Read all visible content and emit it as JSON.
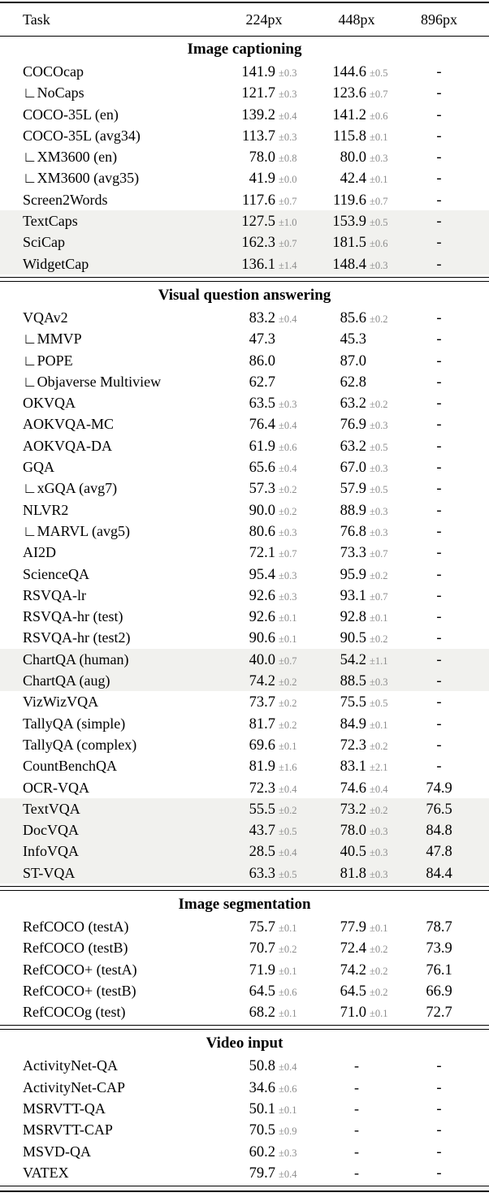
{
  "colors": {
    "text": "#000000",
    "error_text": "#8c8c8c",
    "row_shade": "#f1f1ee",
    "rule": "#000000",
    "background": "#ffffff"
  },
  "table": {
    "columns": [
      "Task",
      "224px",
      "448px",
      "896px"
    ],
    "sections": [
      {
        "title": "Image captioning",
        "rows": [
          {
            "task": "COCOcap",
            "shaded": false,
            "v224": "141.9",
            "e224": "±0.3",
            "v448": "144.6",
            "e448": "±0.5",
            "v896": "-"
          },
          {
            "task": "∟NoCaps",
            "shaded": false,
            "v224": "121.7",
            "e224": "±0.3",
            "v448": "123.6",
            "e448": "±0.7",
            "v896": "-"
          },
          {
            "task": "COCO-35L (en)",
            "shaded": false,
            "v224": "139.2",
            "e224": "±0.4",
            "v448": "141.2",
            "e448": "±0.6",
            "v896": "-"
          },
          {
            "task": "COCO-35L (avg34)",
            "shaded": false,
            "v224": "113.7",
            "e224": "±0.3",
            "v448": "115.8",
            "e448": "±0.1",
            "v896": "-"
          },
          {
            "task": "∟XM3600 (en)",
            "shaded": false,
            "v224": "78.0",
            "e224": "±0.8",
            "v448": "80.0",
            "e448": "±0.3",
            "v896": "-"
          },
          {
            "task": "∟XM3600 (avg35)",
            "shaded": false,
            "v224": "41.9",
            "e224": "±0.0",
            "v448": "42.4",
            "e448": "±0.1",
            "v896": "-"
          },
          {
            "task": "Screen2Words",
            "shaded": false,
            "v224": "117.6",
            "e224": "±0.7",
            "v448": "119.6",
            "e448": "±0.7",
            "v896": "-"
          },
          {
            "task": "TextCaps",
            "shaded": true,
            "v224": "127.5",
            "e224": "±1.0",
            "v448": "153.9",
            "e448": "±0.5",
            "v896": "-"
          },
          {
            "task": "SciCap",
            "shaded": true,
            "v224": "162.3",
            "e224": "±0.7",
            "v448": "181.5",
            "e448": "±0.6",
            "v896": "-"
          },
          {
            "task": "WidgetCap",
            "shaded": true,
            "v224": "136.1",
            "e224": "±1.4",
            "v448": "148.4",
            "e448": "±0.3",
            "v896": "-"
          }
        ]
      },
      {
        "title": "Visual question answering",
        "rows": [
          {
            "task": "VQAv2",
            "shaded": false,
            "v224": "83.2",
            "e224": "±0.4",
            "v448": "85.6",
            "e448": "±0.2",
            "v896": "-"
          },
          {
            "task": "∟MMVP",
            "shaded": false,
            "v224": "47.3",
            "e224": "",
            "v448": "45.3",
            "e448": "",
            "v896": "-"
          },
          {
            "task": "∟POPE",
            "shaded": false,
            "v224": "86.0",
            "e224": "",
            "v448": "87.0",
            "e448": "",
            "v896": "-"
          },
          {
            "task": "∟Objaverse Multiview",
            "shaded": false,
            "v224": "62.7",
            "e224": "",
            "v448": "62.8",
            "e448": "",
            "v896": "-"
          },
          {
            "task": "OKVQA",
            "shaded": false,
            "v224": "63.5",
            "e224": "±0.3",
            "v448": "63.2",
            "e448": "±0.2",
            "v896": "-"
          },
          {
            "task": "AOKVQA-MC",
            "shaded": false,
            "v224": "76.4",
            "e224": "±0.4",
            "v448": "76.9",
            "e448": "±0.3",
            "v896": "-"
          },
          {
            "task": "AOKVQA-DA",
            "shaded": false,
            "v224": "61.9",
            "e224": "±0.6",
            "v448": "63.2",
            "e448": "±0.5",
            "v896": "-"
          },
          {
            "task": "GQA",
            "shaded": false,
            "v224": "65.6",
            "e224": "±0.4",
            "v448": "67.0",
            "e448": "±0.3",
            "v896": "-"
          },
          {
            "task": "∟xGQA (avg7)",
            "shaded": false,
            "v224": "57.3",
            "e224": "±0.2",
            "v448": "57.9",
            "e448": "±0.5",
            "v896": "-"
          },
          {
            "task": "NLVR2",
            "shaded": false,
            "v224": "90.0",
            "e224": "±0.2",
            "v448": "88.9",
            "e448": "±0.3",
            "v896": "-"
          },
          {
            "task": "∟MARVL (avg5)",
            "shaded": false,
            "v224": "80.6",
            "e224": "±0.3",
            "v448": "76.8",
            "e448": "±0.3",
            "v896": "-"
          },
          {
            "task": "AI2D",
            "shaded": false,
            "v224": "72.1",
            "e224": "±0.7",
            "v448": "73.3",
            "e448": "±0.7",
            "v896": "-"
          },
          {
            "task": "ScienceQA",
            "shaded": false,
            "v224": "95.4",
            "e224": "±0.3",
            "v448": "95.9",
            "e448": "±0.2",
            "v896": "-"
          },
          {
            "task": "RSVQA-lr",
            "shaded": false,
            "v224": "92.6",
            "e224": "±0.3",
            "v448": "93.1",
            "e448": "±0.7",
            "v896": "-"
          },
          {
            "task": "RSVQA-hr (test)",
            "shaded": false,
            "v224": "92.6",
            "e224": "±0.1",
            "v448": "92.8",
            "e448": "±0.1",
            "v896": "-"
          },
          {
            "task": "RSVQA-hr (test2)",
            "shaded": false,
            "v224": "90.6",
            "e224": "±0.1",
            "v448": "90.5",
            "e448": "±0.2",
            "v896": "-"
          },
          {
            "task": "ChartQA (human)",
            "shaded": true,
            "v224": "40.0",
            "e224": "±0.7",
            "v448": "54.2",
            "e448": "±1.1",
            "v896": "-"
          },
          {
            "task": "ChartQA (aug)",
            "shaded": true,
            "v224": "74.2",
            "e224": "±0.2",
            "v448": "88.5",
            "e448": "±0.3",
            "v896": "-"
          },
          {
            "task": "VizWizVQA",
            "shaded": false,
            "v224": "73.7",
            "e224": "±0.2",
            "v448": "75.5",
            "e448": "±0.5",
            "v896": "-"
          },
          {
            "task": "TallyQA (simple)",
            "shaded": false,
            "v224": "81.7",
            "e224": "±0.2",
            "v448": "84.9",
            "e448": "±0.1",
            "v896": "-"
          },
          {
            "task": "TallyQA (complex)",
            "shaded": false,
            "v224": "69.6",
            "e224": "±0.1",
            "v448": "72.3",
            "e448": "±0.2",
            "v896": "-"
          },
          {
            "task": "CountBenchQA",
            "shaded": false,
            "v224": "81.9",
            "e224": "±1.6",
            "v448": "83.1",
            "e448": "±2.1",
            "v896": "-"
          },
          {
            "task": "OCR-VQA",
            "shaded": false,
            "v224": "72.3",
            "e224": "±0.4",
            "v448": "74.6",
            "e448": "±0.4",
            "v896": "74.9"
          },
          {
            "task": "TextVQA",
            "shaded": true,
            "v224": "55.5",
            "e224": "±0.2",
            "v448": "73.2",
            "e448": "±0.2",
            "v896": "76.5"
          },
          {
            "task": "DocVQA",
            "shaded": true,
            "v224": "43.7",
            "e224": "±0.5",
            "v448": "78.0",
            "e448": "±0.3",
            "v896": "84.8"
          },
          {
            "task": "InfoVQA",
            "shaded": true,
            "v224": "28.5",
            "e224": "±0.4",
            "v448": "40.5",
            "e448": "±0.3",
            "v896": "47.8"
          },
          {
            "task": "ST-VQA",
            "shaded": true,
            "v224": "63.3",
            "e224": "±0.5",
            "v448": "81.8",
            "e448": "±0.3",
            "v896": "84.4"
          }
        ]
      },
      {
        "title": "Image segmentation",
        "rows": [
          {
            "task": "RefCOCO (testA)",
            "shaded": false,
            "v224": "75.7",
            "e224": "±0.1",
            "v448": "77.9",
            "e448": "±0.1",
            "v896": "78.7"
          },
          {
            "task": "RefCOCO (testB)",
            "shaded": false,
            "v224": "70.7",
            "e224": "±0.2",
            "v448": "72.4",
            "e448": "±0.2",
            "v896": "73.9"
          },
          {
            "task": "RefCOCO+ (testA)",
            "shaded": false,
            "v224": "71.9",
            "e224": "±0.1",
            "v448": "74.2",
            "e448": "±0.2",
            "v896": "76.1"
          },
          {
            "task": "RefCOCO+ (testB)",
            "shaded": false,
            "v224": "64.5",
            "e224": "±0.6",
            "v448": "64.5",
            "e448": "±0.2",
            "v896": "66.9"
          },
          {
            "task": "RefCOCOg (test)",
            "shaded": false,
            "v224": "68.2",
            "e224": "±0.1",
            "v448": "71.0",
            "e448": "±0.1",
            "v896": "72.7"
          }
        ]
      },
      {
        "title": "Video input",
        "rows": [
          {
            "task": "ActivityNet-QA",
            "shaded": false,
            "v224": "50.8",
            "e224": "±0.4",
            "v448": "-",
            "e448": "",
            "v896": "-"
          },
          {
            "task": "ActivityNet-CAP",
            "shaded": false,
            "v224": "34.6",
            "e224": "±0.6",
            "v448": "-",
            "e448": "",
            "v896": "-"
          },
          {
            "task": "MSRVTT-QA",
            "shaded": false,
            "v224": "50.1",
            "e224": "±0.1",
            "v448": "-",
            "e448": "",
            "v896": "-"
          },
          {
            "task": "MSRVTT-CAP",
            "shaded": false,
            "v224": "70.5",
            "e224": "±0.9",
            "v448": "-",
            "e448": "",
            "v896": "-"
          },
          {
            "task": "MSVD-QA",
            "shaded": false,
            "v224": "60.2",
            "e224": "±0.3",
            "v448": "-",
            "e448": "",
            "v896": "-"
          },
          {
            "task": "VATEX",
            "shaded": false,
            "v224": "79.7",
            "e224": "±0.4",
            "v448": "-",
            "e448": "",
            "v896": "-"
          }
        ]
      }
    ]
  }
}
